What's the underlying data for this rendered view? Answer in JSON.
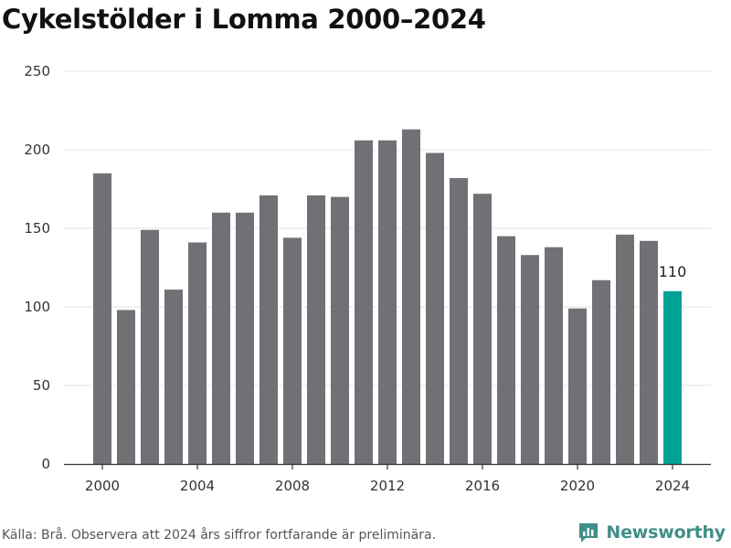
{
  "title": "Cykelstölder i Lomma 2000–2024",
  "source": "Källa: Brå. Observera att 2024 års siffror fortfarande är preliminära.",
  "brand": {
    "name": "Newsworthy",
    "icon": "newsworthy-logo-icon",
    "color": "#3f8f88"
  },
  "colors": {
    "bar": "#707075",
    "highlight": "#00a197",
    "grid": "#e3e3e3",
    "axis": "#333333"
  },
  "chart_data": {
    "type": "bar",
    "title": "Cykelstölder i Lomma 2000–2024",
    "xlabel": "",
    "ylabel": "",
    "x": [
      2000,
      2001,
      2002,
      2003,
      2004,
      2005,
      2006,
      2007,
      2008,
      2009,
      2010,
      2011,
      2012,
      2013,
      2014,
      2015,
      2016,
      2017,
      2018,
      2019,
      2020,
      2021,
      2022,
      2023,
      2024
    ],
    "values": [
      185,
      98,
      149,
      111,
      141,
      160,
      160,
      171,
      144,
      171,
      170,
      206,
      206,
      213,
      198,
      182,
      172,
      145,
      133,
      138,
      99,
      117,
      146,
      142,
      110
    ],
    "ylim": [
      0,
      250
    ],
    "yticks": [
      0,
      50,
      100,
      150,
      200,
      250
    ],
    "xticks": [
      2000,
      2004,
      2008,
      2012,
      2016,
      2020,
      2024
    ],
    "highlight": {
      "x": 2024,
      "label": "110"
    },
    "grid": true,
    "legend": "none"
  }
}
